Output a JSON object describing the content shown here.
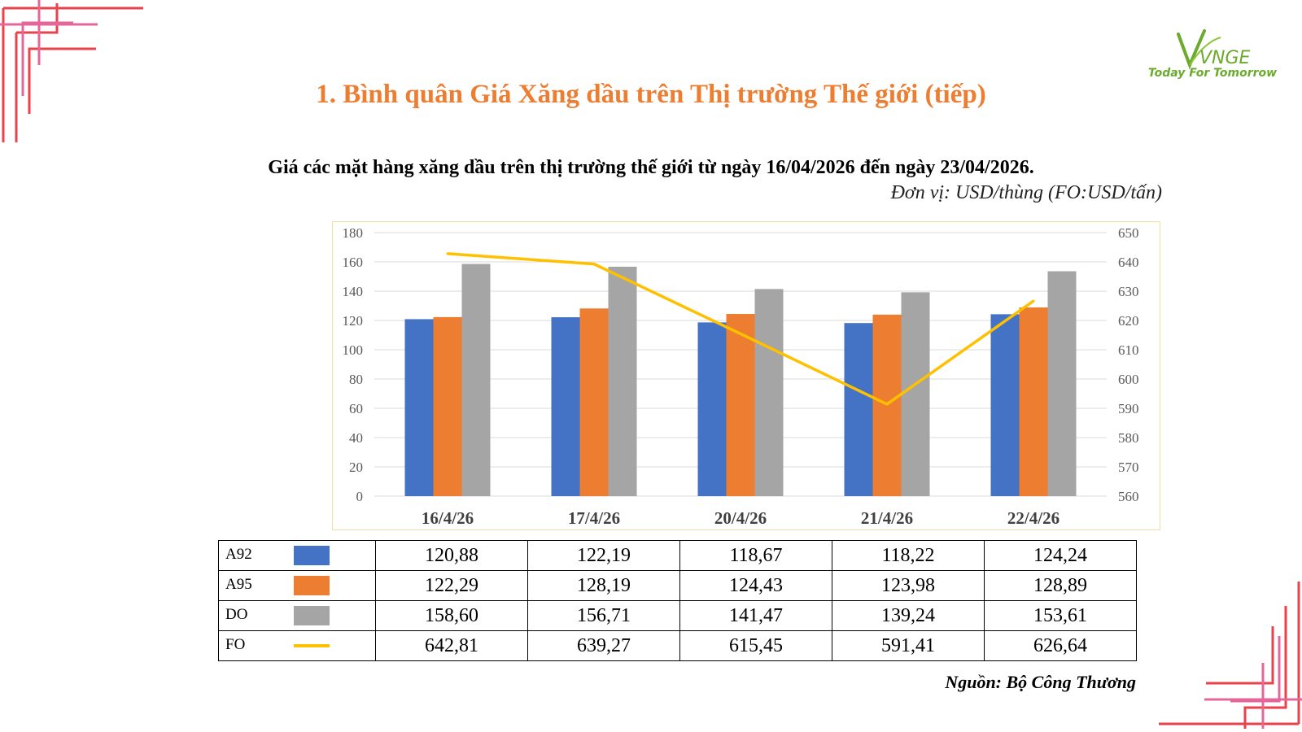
{
  "slide": {
    "title": "1. Bình quân Giá Xăng dầu trên Thị trường Thế giới (tiếp)",
    "logo_mark": "VNGE",
    "logo_tagline": "Today For Tomorrow",
    "unit_note": "Đơn vị: USD/thùng (FO:USD/tấn)",
    "source_note": "Nguồn: Bộ Công Thương"
  },
  "colors": {
    "title": "#ED7D31",
    "a92": "#4472C4",
    "a95": "#ED7D31",
    "do": "#A5A5A5",
    "fo": "#FFC000",
    "deco_red": "#E8434D",
    "deco_pink": "#E5679A",
    "logo_green": "#6BAA2C"
  },
  "chart_data": {
    "type": "bar",
    "title": "Giá các mặt hàng xăng dầu trên thị trường thế giới từ ngày 16/04/2026 đến ngày 23/04/2026.",
    "categories": [
      "16/4/26",
      "17/4/26",
      "20/4/26",
      "21/4/26",
      "22/4/26"
    ],
    "series": [
      {
        "name": "A92",
        "type": "bar",
        "axis": "left",
        "color": "#4472C4",
        "values": [
          120.88,
          122.19,
          118.67,
          118.22,
          124.24
        ],
        "labels": [
          "120,88",
          "122,19",
          "118,67",
          "118,22",
          "124,24"
        ]
      },
      {
        "name": "A95",
        "type": "bar",
        "axis": "left",
        "color": "#ED7D31",
        "values": [
          122.29,
          128.19,
          124.43,
          123.98,
          128.89
        ],
        "labels": [
          "122,29",
          "128,19",
          "124,43",
          "123,98",
          "128,89"
        ]
      },
      {
        "name": "DO",
        "type": "bar",
        "axis": "left",
        "color": "#A5A5A5",
        "values": [
          158.6,
          156.71,
          141.47,
          139.24,
          153.61
        ],
        "labels": [
          "158,60",
          "156,71",
          "141,47",
          "139,24",
          "153,61"
        ]
      },
      {
        "name": "FO",
        "type": "line",
        "axis": "right",
        "color": "#FFC000",
        "values": [
          642.81,
          639.27,
          615.45,
          591.41,
          626.64
        ],
        "labels": [
          "642,81",
          "639,27",
          "615,45",
          "591,41",
          "626,64"
        ]
      }
    ],
    "y_left": {
      "min": 0,
      "max": 180,
      "step": 20,
      "ticks": [
        "0",
        "20",
        "40",
        "60",
        "80",
        "100",
        "120",
        "140",
        "160",
        "180"
      ]
    },
    "y_right": {
      "min": 560,
      "max": 650,
      "step": 10,
      "ticks": [
        "560",
        "570",
        "580",
        "590",
        "600",
        "610",
        "620",
        "630",
        "640",
        "650"
      ]
    },
    "grid": true,
    "xlabel": "",
    "ylabel": ""
  }
}
